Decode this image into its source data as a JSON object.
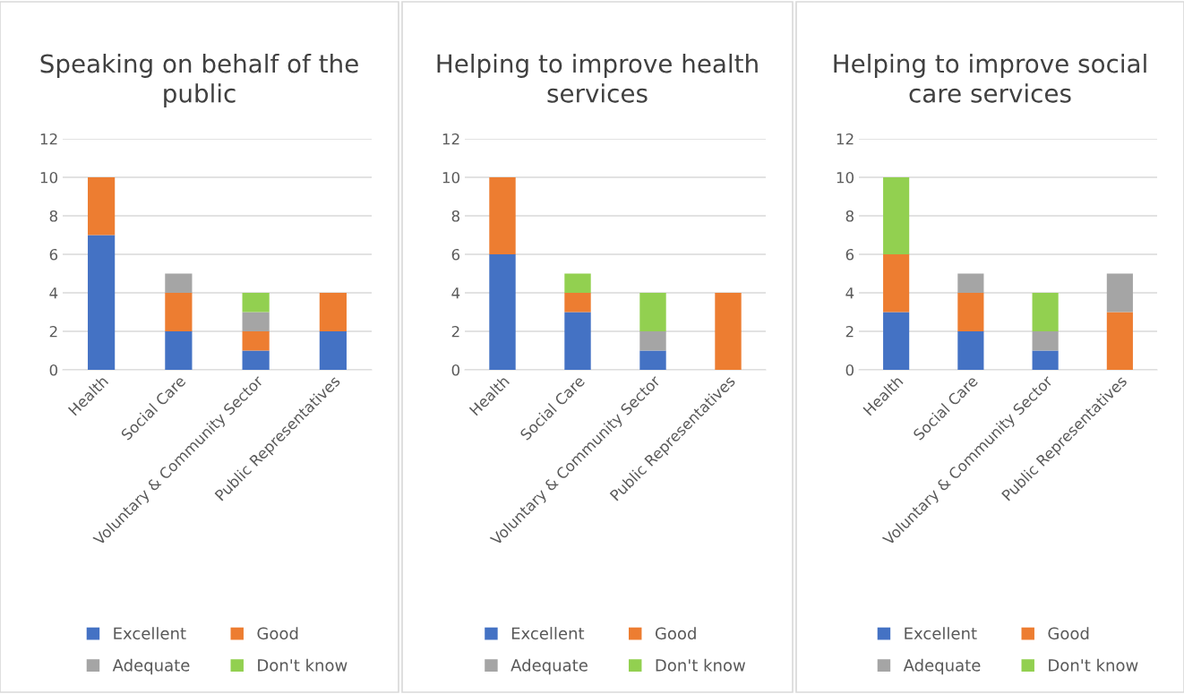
{
  "chart_data": [
    {
      "type": "bar",
      "title": "Speaking on behalf of the public",
      "stacked": true,
      "categories": [
        "Health",
        "Social Care",
        "Voluntary & Community Sector",
        "Public Representatives"
      ],
      "ylim": [
        0,
        12
      ],
      "yticks": [
        0,
        2,
        4,
        6,
        8,
        10,
        12
      ],
      "grid": "y",
      "legend": "bottom",
      "series": [
        {
          "name": "Excellent",
          "color": "#4472c4",
          "values": [
            7,
            2,
            1,
            2
          ]
        },
        {
          "name": "Good",
          "color": "#ed7d31",
          "values": [
            3,
            2,
            1,
            2
          ]
        },
        {
          "name": "Adequate",
          "color": "#a5a5a5",
          "values": [
            0,
            1,
            1,
            0
          ]
        },
        {
          "name": "Don't know",
          "color": "#92d050",
          "values": [
            0,
            0,
            1,
            0
          ]
        }
      ]
    },
    {
      "type": "bar",
      "title": "Helping to improve health services",
      "stacked": true,
      "categories": [
        "Health",
        "Social Care",
        "Voluntary & Community Sector",
        "Public Representatives"
      ],
      "ylim": [
        0,
        12
      ],
      "yticks": [
        0,
        2,
        4,
        6,
        8,
        10,
        12
      ],
      "grid": "y",
      "legend": "bottom",
      "series": [
        {
          "name": "Excellent",
          "color": "#4472c4",
          "values": [
            6,
            3,
            1,
            0
          ]
        },
        {
          "name": "Good",
          "color": "#ed7d31",
          "values": [
            4,
            1,
            0,
            4
          ]
        },
        {
          "name": "Adequate",
          "color": "#a5a5a5",
          "values": [
            0,
            0,
            1,
            0
          ]
        },
        {
          "name": "Don't know",
          "color": "#92d050",
          "values": [
            0,
            1,
            2,
            0
          ]
        }
      ]
    },
    {
      "type": "bar",
      "title": "Helping to improve social care services",
      "stacked": true,
      "categories": [
        "Health",
        "Social Care",
        "Voluntary & Community Sector",
        "Public Representatives"
      ],
      "ylim": [
        0,
        12
      ],
      "yticks": [
        0,
        2,
        4,
        6,
        8,
        10,
        12
      ],
      "grid": "y",
      "legend": "bottom",
      "series": [
        {
          "name": "Excellent",
          "color": "#4472c4",
          "values": [
            3,
            2,
            1,
            0
          ]
        },
        {
          "name": "Good",
          "color": "#ed7d31",
          "values": [
            3,
            2,
            0,
            3
          ]
        },
        {
          "name": "Adequate",
          "color": "#a5a5a5",
          "values": [
            0,
            1,
            1,
            2
          ]
        },
        {
          "name": "Don't know",
          "color": "#92d050",
          "values": [
            4,
            0,
            2,
            0
          ]
        }
      ]
    }
  ]
}
